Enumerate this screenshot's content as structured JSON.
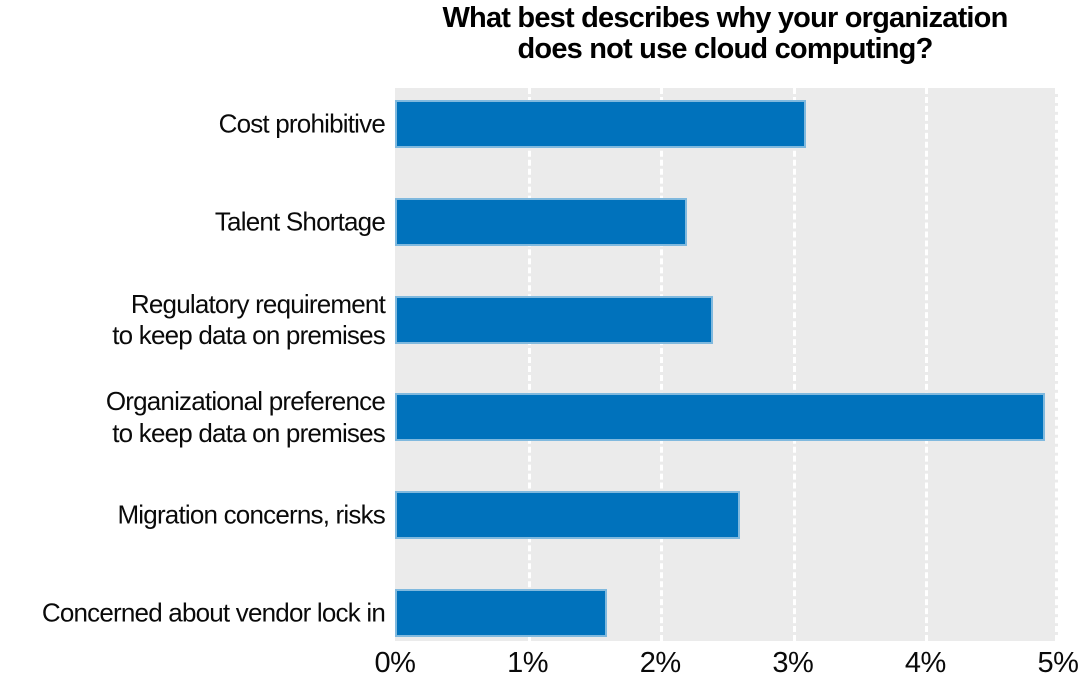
{
  "chart_data": {
    "type": "bar",
    "orientation": "horizontal",
    "title": "What best describes why your organization does not use cloud computing?",
    "title_lines": "What best describes  why your organization\ndoes not use cloud computing?",
    "categories": [
      "Cost prohibitive",
      "Talent Shortage",
      "Regulatory requirement to keep data on premises",
      "Organizational preference to keep data on premises",
      "Migration concerns, risks",
      "Concerned about vendor lock in"
    ],
    "category_display": [
      "Cost prohibitive",
      "Talent Shortage",
      "Regulatory requirement\nto keep data on premises",
      "Organizational preference\nto keep data on premises",
      "Migration concerns, risks",
      "Concerned about vendor lock in"
    ],
    "values": [
      3.1,
      2.2,
      2.4,
      4.9,
      2.6,
      1.6
    ],
    "unit": "%",
    "xlabel": "",
    "ylabel": "",
    "xlim": [
      0,
      5
    ],
    "x_ticks": [
      "0%",
      "1%",
      "2%",
      "3%",
      "4%",
      "5%"
    ],
    "grid": "vertical white dashed gridlines at each tick",
    "legend": "none",
    "colors": {
      "bar": "#0072BC",
      "bar_edge": "rgba(255,255,255,0.5)",
      "plot_background": "#EBEBEB",
      "text": "#0A0A0A",
      "page_background": "#FFFFFF"
    }
  }
}
